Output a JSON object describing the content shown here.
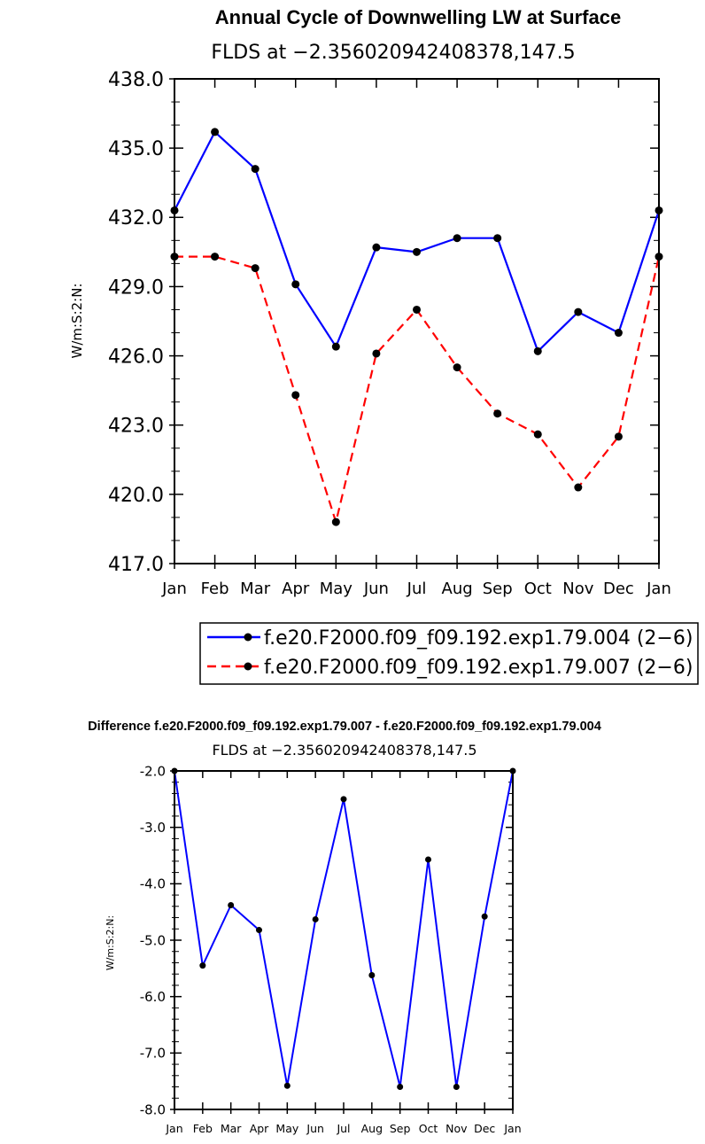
{
  "chart_data": [
    {
      "type": "line",
      "title": "Annual Cycle of Downwelling LW at Surface",
      "subtitle": "FLDS at −2.356020942408378,147.5",
      "ylabel": "W/m:S:2:N:",
      "xlabel": "",
      "ylim": [
        417.0,
        438.0
      ],
      "yticks": [
        "417.0",
        "420.0",
        "423.0",
        "426.0",
        "429.0",
        "432.0",
        "435.0",
        "438.0"
      ],
      "categories": [
        "Jan",
        "Feb",
        "Mar",
        "Apr",
        "May",
        "Jun",
        "Jul",
        "Aug",
        "Sep",
        "Oct",
        "Nov",
        "Dec",
        "Jan"
      ],
      "legend_position": "bottom",
      "series": [
        {
          "name": "f.e20.F2000.f09_f09.192.exp1.79.004 (2−6)",
          "color": "#0000ff",
          "dash": "solid",
          "values": [
            432.3,
            435.7,
            434.1,
            429.1,
            426.4,
            430.7,
            430.5,
            431.1,
            431.1,
            426.2,
            427.9,
            427.0,
            432.3
          ]
        },
        {
          "name": "f.e20.F2000.f09_f09.192.exp1.79.007 (2−6)",
          "color": "#ff0000",
          "dash": "dashed",
          "values": [
            430.3,
            430.3,
            429.8,
            424.3,
            418.8,
            426.1,
            428.0,
            425.5,
            423.5,
            422.6,
            420.3,
            422.5,
            430.3
          ]
        }
      ]
    },
    {
      "type": "line",
      "title": "Difference f.e20.F2000.f09_f09.192.exp1.79.007 - f.e20.F2000.f09_f09.192.exp1.79.004",
      "subtitle": "FLDS at −2.356020942408378,147.5",
      "ylabel": "W/m:S:2:N:",
      "xlabel": "",
      "ylim": [
        -8.0,
        -2.0
      ],
      "yticks": [
        "-8.0",
        "-7.0",
        "-6.0",
        "-5.0",
        "-4.0",
        "-3.0",
        "-2.0"
      ],
      "categories": [
        "Jan",
        "Feb",
        "Mar",
        "Apr",
        "May",
        "Jun",
        "Jul",
        "Aug",
        "Sep",
        "Oct",
        "Nov",
        "Dec",
        "Jan"
      ],
      "series": [
        {
          "color": "#0000ff",
          "dash": "solid",
          "values": [
            -2.0,
            -5.45,
            -4.38,
            -4.82,
            -7.58,
            -4.63,
            -2.5,
            -5.62,
            -7.6,
            -3.57,
            -7.6,
            -4.58,
            -2.0
          ]
        }
      ]
    }
  ]
}
